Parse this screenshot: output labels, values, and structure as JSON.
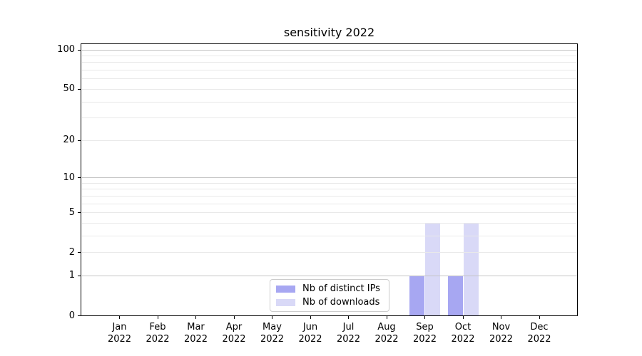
{
  "title": "sensitivity 2022",
  "chart_data": {
    "type": "bar",
    "title": "sensitivity 2022",
    "categories": [
      "Jan 2022",
      "Feb 2022",
      "Mar 2022",
      "Apr 2022",
      "May 2022",
      "Jun 2022",
      "Jul 2022",
      "Aug 2022",
      "Sep 2022",
      "Oct 2022",
      "Nov 2022",
      "Dec 2022"
    ],
    "series": [
      {
        "name": "Nb of distinct IPs",
        "color": "#a7a7f2",
        "values": [
          0,
          0,
          0,
          0,
          0,
          0,
          0,
          0,
          1,
          1,
          0,
          0
        ]
      },
      {
        "name": "Nb of downloads",
        "color": "#d9d9f7",
        "values": [
          0,
          0,
          0,
          0,
          0,
          0,
          0,
          0,
          4,
          4,
          0,
          0
        ]
      }
    ],
    "xlabel": "",
    "ylabel": "",
    "yscale": "log1p",
    "yticks": [
      0,
      1,
      2,
      5,
      10,
      20,
      50,
      100
    ],
    "yticks_minor": [
      3,
      4,
      6,
      7,
      8,
      9,
      30,
      40,
      60,
      70,
      80,
      90
    ],
    "ylim": [
      0,
      112
    ],
    "grid": true,
    "legend_position": "lower center"
  },
  "colors": {
    "background": "#ffffff",
    "axis": "#000000",
    "grid_major": "#c4c4c4",
    "grid_minor": "#e9e9e9",
    "series_ips": "#a7a7f2",
    "series_downloads": "#d9d9f7",
    "legend_border": "#cccccc"
  }
}
